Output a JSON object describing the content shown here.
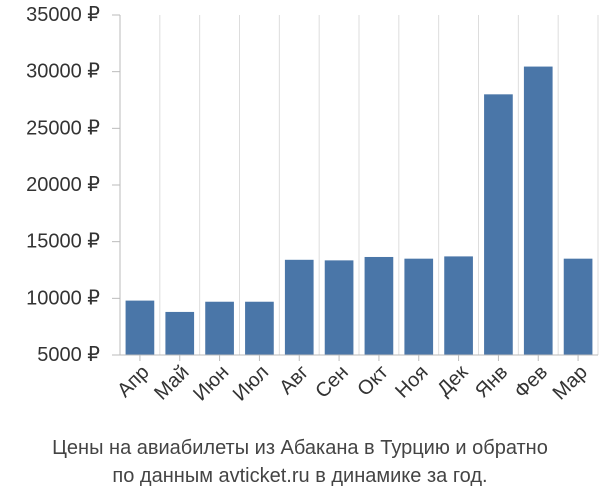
{
  "chart_data": {
    "type": "bar",
    "categories": [
      "Апр",
      "Май",
      "Июн",
      "Июл",
      "Авг",
      "Сен",
      "Окт",
      "Ноя",
      "Дек",
      "Янв",
      "Фев",
      "Мар"
    ],
    "values": [
      9800,
      8800,
      9700,
      9700,
      13400,
      13350,
      13650,
      13500,
      13700,
      28000,
      30450,
      13500
    ],
    "ylim": [
      5000,
      35000
    ],
    "yticks": [
      5000,
      10000,
      15000,
      20000,
      25000,
      30000,
      35000
    ],
    "ytick_labels": [
      "5000 ₽",
      "10000 ₽",
      "15000 ₽",
      "20000 ₽",
      "25000 ₽",
      "30000 ₽",
      "35000 ₽"
    ],
    "title": "",
    "xlabel": "",
    "ylabel": "",
    "grid": "vertical",
    "bar_color": "#4a76a8",
    "grid_color": "#dddddd",
    "axis_color": "#bbbbbb"
  },
  "caption": {
    "line1": "Цены на авиабилеты из Абакана в Турцию и обратно",
    "line2": "по данным avticket.ru в динамике за год."
  }
}
